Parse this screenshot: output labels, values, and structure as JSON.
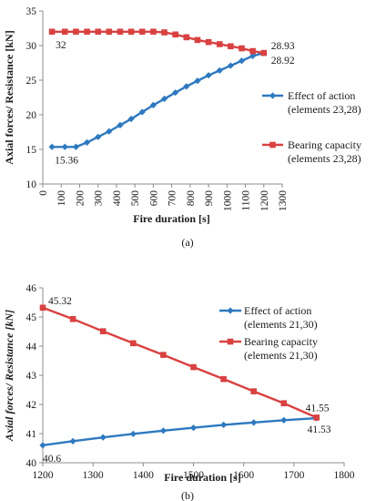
{
  "colors": {
    "series_blue": "#2e79c0",
    "series_red": "#d94141",
    "axis": "#8c8c8c"
  },
  "chart_data": [
    {
      "type": "line",
      "panel_label": "(a)",
      "xlabel": "Fire duration [s]",
      "ylabel": "Axial forces/ Resistance [kN]",
      "xlim": [
        0,
        1300
      ],
      "ylim": [
        10,
        35
      ],
      "xticks": [
        "0",
        "100",
        "200",
        "300",
        "400",
        "500",
        "600",
        "700",
        "800",
        "900",
        "1000",
        "1100",
        "1200",
        "1300"
      ],
      "yticks": [
        "10",
        "15",
        "20",
        "25",
        "30",
        "35"
      ],
      "series": [
        {
          "name": "Effect of action (elements 23,28)",
          "legend_lines": [
            "Effect of action",
            "(elements 23,28)"
          ],
          "marker": "diamond",
          "x": [
            50,
            120,
            180,
            240,
            300,
            360,
            420,
            480,
            540,
            600,
            660,
            720,
            780,
            840,
            900,
            960,
            1020,
            1080,
            1140,
            1200
          ],
          "y": [
            15.36,
            15.36,
            15.36,
            16.0,
            16.8,
            17.6,
            18.5,
            19.4,
            20.4,
            21.4,
            22.3,
            23.2,
            24.1,
            24.9,
            25.7,
            26.4,
            27.1,
            27.8,
            28.5,
            28.92
          ]
        },
        {
          "name": "Bearing capacity (elements 23,28)",
          "legend_lines": [
            "Bearing capacity",
            "(elements 23,28)"
          ],
          "marker": "square",
          "x": [
            50,
            120,
            180,
            240,
            300,
            360,
            420,
            480,
            540,
            600,
            660,
            720,
            780,
            840,
            900,
            960,
            1020,
            1080,
            1140,
            1200
          ],
          "y": [
            32,
            32,
            32,
            32,
            32,
            32,
            32,
            32,
            32,
            32,
            31.9,
            31.6,
            31.2,
            30.8,
            30.5,
            30.2,
            29.9,
            29.6,
            29.2,
            28.93
          ]
        }
      ],
      "annotations": [
        {
          "text": "32",
          "x": 50,
          "y": 32
        },
        {
          "text": "15.36",
          "x": 50,
          "y": 15.36
        },
        {
          "text": "28.93",
          "x": 1200,
          "y": 28.93
        },
        {
          "text": "28.92",
          "x": 1200,
          "y": 28.92
        }
      ],
      "legend_position": "right",
      "grid": false
    },
    {
      "type": "line",
      "panel_label": "(b)",
      "xlabel": "Fire duration [s]",
      "ylabel": "Axial forces/ Resistance [kN]",
      "xlim": [
        1200,
        1800
      ],
      "ylim": [
        40,
        46
      ],
      "xticks": [
        "1200",
        "1300",
        "1400",
        "1500",
        "1600",
        "1700",
        "1800"
      ],
      "yticks": [
        "40",
        "41",
        "42",
        "43",
        "44",
        "45",
        "46"
      ],
      "series": [
        {
          "name": "Effect of action (elements 21,30)",
          "legend_lines": [
            "Effect of action",
            "(elements 21,30)"
          ],
          "marker": "diamond",
          "x": [
            1200,
            1260,
            1320,
            1380,
            1440,
            1500,
            1560,
            1620,
            1680,
            1745
          ],
          "y": [
            40.6,
            40.74,
            40.87,
            40.99,
            41.1,
            41.2,
            41.3,
            41.38,
            41.46,
            41.53
          ]
        },
        {
          "name": "Bearing capacity (elements 21,30)",
          "legend_lines": [
            "Bearing capacity",
            "(elements 21,30)"
          ],
          "marker": "square",
          "x": [
            1200,
            1260,
            1320,
            1380,
            1440,
            1500,
            1560,
            1620,
            1680,
            1745
          ],
          "y": [
            45.32,
            44.93,
            44.51,
            44.1,
            43.7,
            43.28,
            42.87,
            42.45,
            42.04,
            41.55
          ]
        }
      ],
      "annotations": [
        {
          "text": "45.32",
          "x": 1200,
          "y": 45.32
        },
        {
          "text": "40.6",
          "x": 1200,
          "y": 40.6
        },
        {
          "text": "41.55",
          "x": 1745,
          "y": 41.55
        },
        {
          "text": "41.53",
          "x": 1745,
          "y": 41.53
        }
      ],
      "legend_position": "right",
      "grid": false
    }
  ]
}
